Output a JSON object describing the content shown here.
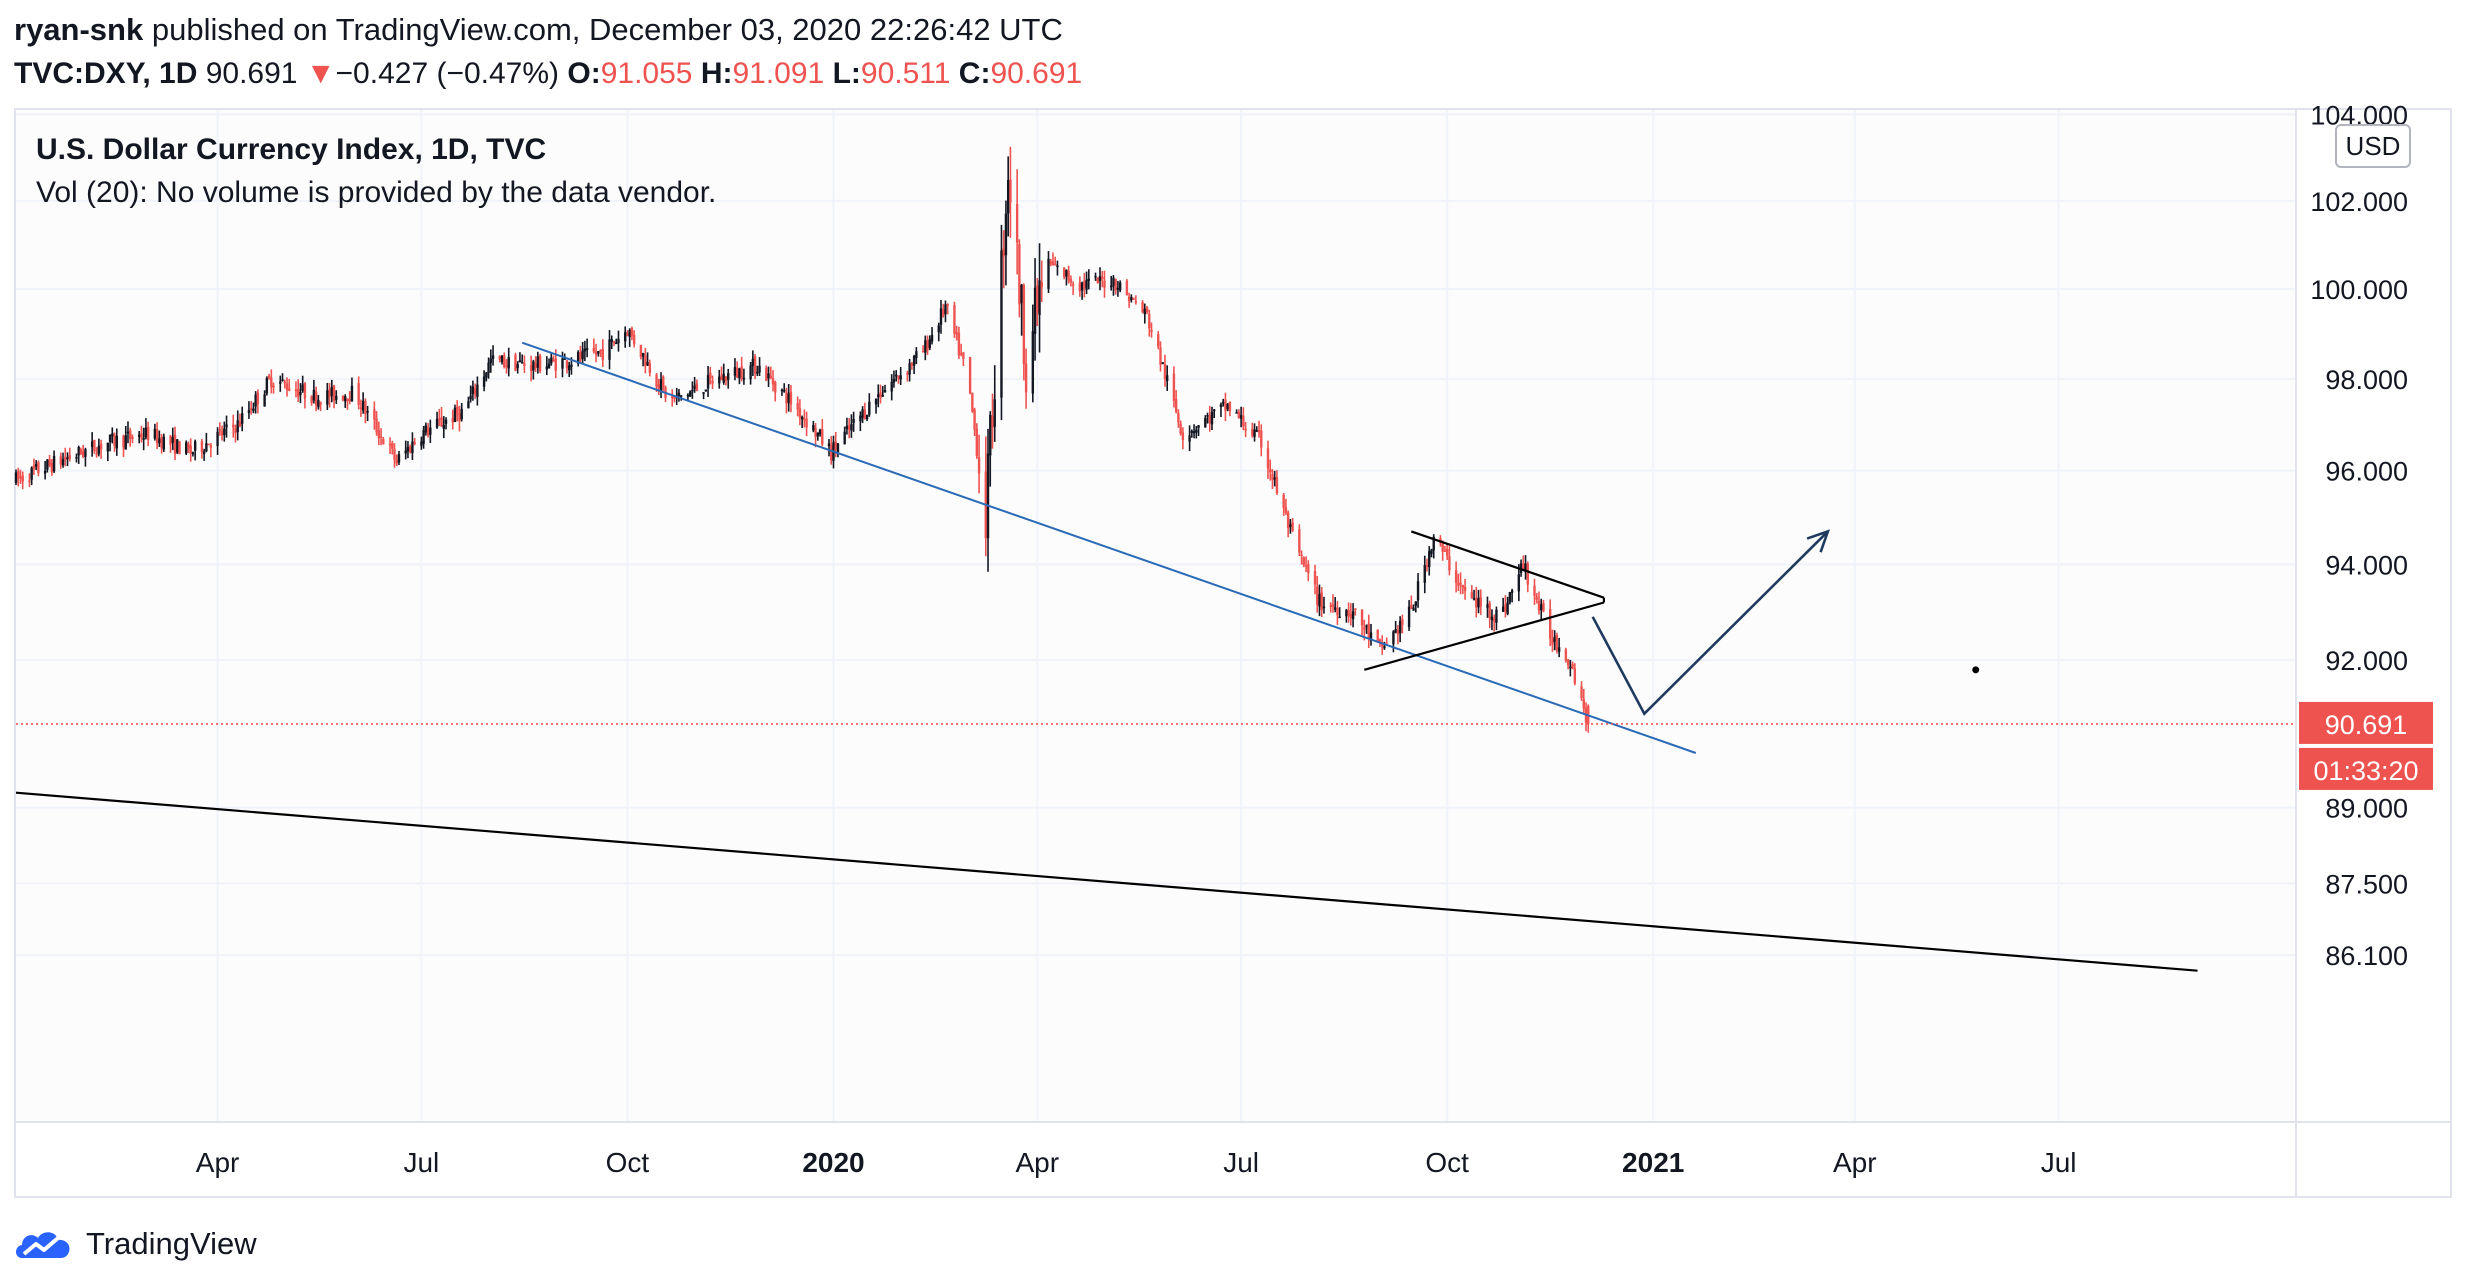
{
  "header": {
    "author": "ryan-snk",
    "published_text": " published on TradingView.com, December 03, 2020 22:26:42 UTC",
    "symbol": "TVC:DXY, 1D",
    "last": "90.691",
    "change_arrow": "▼",
    "change": "−0.427 (−0.47%)",
    "o_label": "O:",
    "o_value": "91.055",
    "h_label": "H:",
    "h_value": "91.091",
    "l_label": "L:",
    "l_value": "90.511",
    "c_label": "C:",
    "c_value": "90.691"
  },
  "legend": {
    "title": "U.S. Dollar Currency Index, 1D, TVC",
    "volume_note": "Vol (20): No volume is provided by the data vendor."
  },
  "currency_button": "USD",
  "footer": {
    "brand": "TradingView",
    "logo_icon": "tradingview-cloud-icon"
  },
  "colors": {
    "up": "#131722",
    "down": "#ef5350",
    "accent": "#ef5350",
    "trendline": "#2a6ab7",
    "grid": "#f0f3fa"
  },
  "chart_data": {
    "type": "candlestick",
    "title": "U.S. Dollar Currency Index, 1D, TVC",
    "y_tick_labels": [
      "104.000",
      "102.000",
      "100.000",
      "98.000",
      "96.000",
      "94.000",
      "92.000",
      "89.000",
      "87.500",
      "86.100"
    ],
    "y_ticks": [
      104,
      102,
      100,
      98,
      96,
      94,
      92,
      89,
      87.5,
      86.1
    ],
    "x_tick_labels": [
      "Apr",
      "Jul",
      "Oct",
      "2020",
      "Apr",
      "Jul",
      "Oct",
      "2021",
      "Apr",
      "Jul"
    ],
    "x_tick_dates": [
      "2019-04-01",
      "2019-07-01",
      "2019-10-01",
      "2020-01-01",
      "2020-04-01",
      "2020-07-01",
      "2020-10-01",
      "2021-01-01",
      "2021-04-01",
      "2021-07-01"
    ],
    "x_range": [
      "2019-01-01",
      "2021-10-15"
    ],
    "y_scale": "log",
    "last_price_label": "90.691",
    "countdown_label": "01:33:20",
    "close_path": [
      [
        "2019-01-01",
        95.8
      ],
      [
        "2019-01-20",
        96.2
      ],
      [
        "2019-02-10",
        96.6
      ],
      [
        "2019-03-01",
        96.8
      ],
      [
        "2019-03-20",
        96.4
      ],
      [
        "2019-04-10",
        97.0
      ],
      [
        "2019-04-25",
        98.0
      ],
      [
        "2019-05-15",
        97.6
      ],
      [
        "2019-06-01",
        97.7
      ],
      [
        "2019-06-20",
        96.2
      ],
      [
        "2019-07-01",
        96.8
      ],
      [
        "2019-07-20",
        97.3
      ],
      [
        "2019-08-01",
        98.4
      ],
      [
        "2019-08-20",
        98.3
      ],
      [
        "2019-09-05",
        98.4
      ],
      [
        "2019-09-20",
        98.6
      ],
      [
        "2019-10-01",
        99.1
      ],
      [
        "2019-10-20",
        97.5
      ],
      [
        "2019-11-10",
        98.0
      ],
      [
        "2019-11-28",
        98.3
      ],
      [
        "2019-12-15",
        97.4
      ],
      [
        "2019-12-31",
        96.4
      ],
      [
        "2020-01-20",
        97.6
      ],
      [
        "2020-02-10",
        98.6
      ],
      [
        "2020-02-20",
        99.6
      ],
      [
        "2020-03-01",
        98.0
      ],
      [
        "2020-03-09",
        95.0
      ],
      [
        "2020-03-19",
        102.8
      ],
      [
        "2020-03-27",
        98.4
      ],
      [
        "2020-04-05",
        100.6
      ],
      [
        "2020-04-20",
        100.1
      ],
      [
        "2020-05-05",
        100.2
      ],
      [
        "2020-05-20",
        99.4
      ],
      [
        "2020-06-05",
        96.8
      ],
      [
        "2020-06-25",
        97.4
      ],
      [
        "2020-07-10",
        96.6
      ],
      [
        "2020-07-25",
        94.4
      ],
      [
        "2020-08-05",
        93.2
      ],
      [
        "2020-08-20",
        93.0
      ],
      [
        "2020-09-01",
        92.2
      ],
      [
        "2020-09-15",
        93.0
      ],
      [
        "2020-09-25",
        94.6
      ],
      [
        "2020-10-10",
        93.3
      ],
      [
        "2020-10-25",
        92.9
      ],
      [
        "2020-11-04",
        94.0
      ],
      [
        "2020-11-15",
        92.6
      ],
      [
        "2020-11-25",
        92.0
      ],
      [
        "2020-12-03",
        90.7
      ]
    ],
    "open": 91.055,
    "high": 91.091,
    "low": 90.511,
    "close": 90.691
  },
  "drawings": {
    "blue_trendline": [
      [
        "2019-08-15",
        98.8
      ],
      [
        "2021-01-20",
        90.1
      ]
    ],
    "black_trendline": [
      [
        "2019-01-01",
        89.3
      ],
      [
        "2021-09-01",
        85.8
      ]
    ],
    "triangle_upper": [
      [
        "2020-09-15",
        94.7
      ],
      [
        "2020-12-10",
        93.3
      ]
    ],
    "triangle_lower": [
      [
        "2020-08-25",
        91.8
      ],
      [
        "2020-12-10",
        93.2
      ]
    ],
    "projection": [
      [
        "2020-12-05",
        92.9
      ],
      [
        "2020-12-28",
        90.9
      ],
      [
        "2021-03-20",
        94.7
      ]
    ],
    "dot": [
      [
        "2021-05-25",
        91.8
      ]
    ]
  }
}
